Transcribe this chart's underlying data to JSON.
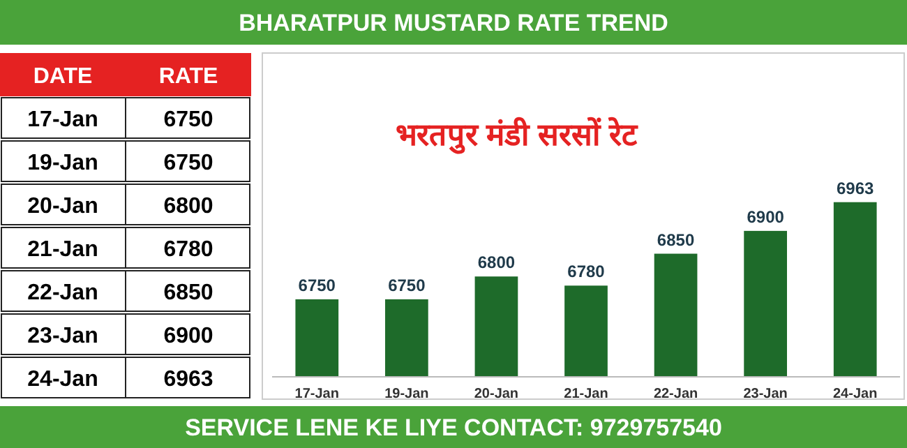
{
  "chart_data": {
    "type": "bar",
    "title": "BHARATPUR MUSTARD RATE TREND",
    "subtitle": "भरतपुर मंडी सरसों रेट",
    "categories": [
      "17-Jan",
      "19-Jan",
      "20-Jan",
      "21-Jan",
      "22-Jan",
      "23-Jan",
      "24-Jan"
    ],
    "values": [
      6750,
      6750,
      6800,
      6780,
      6850,
      6900,
      6963
    ],
    "value_labels": [
      "6750",
      "6750",
      "6800",
      "6780",
      "6850",
      "6900",
      "6963"
    ],
    "color": "#1e6b2a",
    "ylim": [
      6580,
      7290
    ],
    "annotations": [
      "DATE",
      "RATE",
      "SERVICE LENE KE LIYE CONTACT: 9729757540"
    ]
  }
}
